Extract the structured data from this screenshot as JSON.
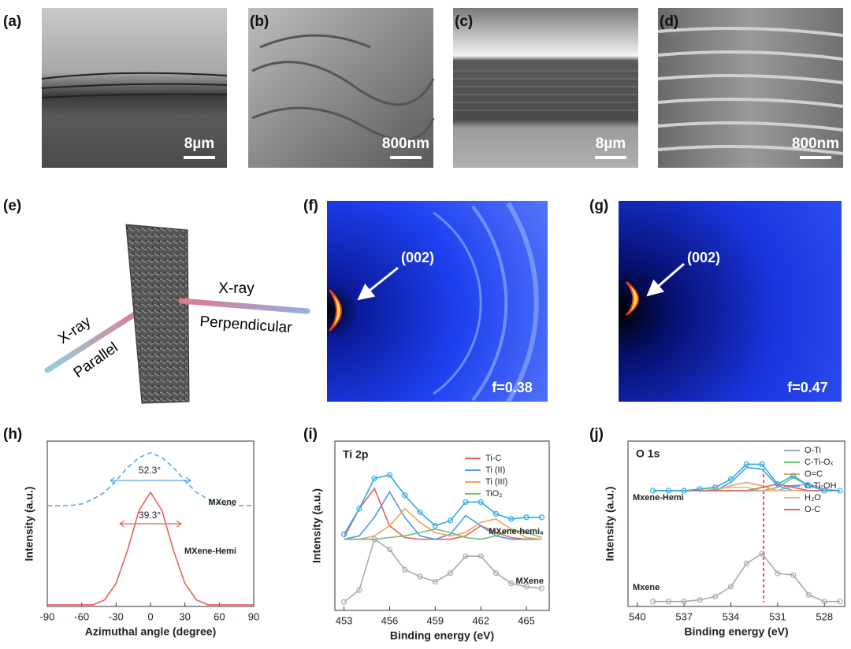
{
  "sem": [
    {
      "label": "(a)",
      "scale": "8µm"
    },
    {
      "label": "(b)",
      "scale": "800nm"
    },
    {
      "label": "(c)",
      "scale": "8µm"
    },
    {
      "label": "(d)",
      "scale": "800nm"
    }
  ],
  "schematic": {
    "label": "(e)",
    "xray_parallel": "X-ray",
    "parallel": "Parallel",
    "xray_perpendicular": "X-ray",
    "perpendicular": "Perpendicular"
  },
  "diffraction": [
    {
      "label": "(f)",
      "peak": "(002)",
      "factor": "f=0.38"
    },
    {
      "label": "(g)",
      "peak": "(002)",
      "factor": "f=0.47"
    }
  ],
  "chart_data": [
    {
      "type": "line",
      "label": "(h)",
      "xlabel": "Azimuthal angle (degree)",
      "ylabel": "Intensity (a.u.)",
      "xlim": [
        -90,
        90
      ],
      "xticks": [
        -90,
        -60,
        -30,
        0,
        30,
        60,
        90
      ],
      "ylim": [
        0,
        10
      ],
      "x": [
        -90,
        -80,
        -70,
        -60,
        -50,
        -40,
        -30,
        -20,
        -10,
        0,
        10,
        20,
        30,
        40,
        50,
        60,
        70,
        80,
        90
      ],
      "series": [
        {
          "name": "MXene",
          "color": "#5aa9e6",
          "dash": true,
          "values": [
            6.1,
            6.1,
            6.1,
            6.2,
            6.5,
            6.9,
            7.6,
            8.4,
            9.0,
            9.3,
            9.0,
            8.4,
            7.6,
            6.9,
            6.5,
            6.2,
            6.1,
            6.1,
            6.1
          ]
        },
        {
          "name": "MXene-Hemi",
          "color": "#e8605a",
          "values": [
            0.1,
            0.1,
            0.1,
            0.1,
            0.1,
            0.4,
            1.4,
            3.4,
            5.8,
            6.9,
            5.8,
            3.4,
            1.4,
            0.4,
            0.1,
            0.1,
            0.1,
            0.1,
            0.1
          ]
        }
      ],
      "annotations": [
        "52.3°",
        "39.3°"
      ]
    },
    {
      "type": "line",
      "label": "(i)",
      "xlabel": "Binding energy (eV)",
      "ylabel": "Intensity (a.u.)",
      "xlim": [
        452.4,
        466.5
      ],
      "xticks": [
        453,
        456,
        459,
        462,
        465
      ],
      "ylim": [
        0,
        10
      ],
      "x": [
        453,
        454,
        455,
        456,
        457,
        458,
        459,
        460,
        461,
        462,
        463,
        464,
        465,
        466
      ],
      "series": [
        {
          "name": "Ti-C",
          "color": "#e8605a",
          "values": [
            4.3,
            6.0,
            7.2,
            5.0,
            4.3,
            4.2,
            4.2,
            4.2,
            4.4,
            5.0,
            4.6,
            4.3,
            4.2,
            4.2
          ]
        },
        {
          "name": "Ti (II)",
          "color": "#4d9de0",
          "values": [
            4.2,
            4.4,
            5.5,
            7.0,
            5.5,
            4.4,
            4.2,
            4.5,
            5.6,
            5.0,
            4.4,
            4.2,
            4.2,
            4.2
          ]
        },
        {
          "name": "Ti (III)",
          "color": "#f0a35e",
          "values": [
            4.2,
            4.2,
            4.4,
            5.0,
            6.0,
            5.2,
            4.6,
            4.4,
            4.6,
            5.2,
            5.4,
            4.8,
            4.3,
            4.2
          ]
        },
        {
          "name": "TiO₂",
          "color": "#6fbf73",
          "values": [
            4.2,
            4.2,
            4.2,
            4.3,
            4.4,
            4.6,
            4.8,
            4.6,
            4.3,
            4.2,
            4.4,
            4.8,
            4.6,
            4.3
          ]
        },
        {
          "name": "MXene-hemi₆",
          "color": "#29aee0",
          "marker": "circle",
          "values": [
            4.5,
            6.0,
            7.8,
            8.0,
            6.8,
            5.8,
            5.0,
            5.3,
            6.4,
            6.4,
            5.7,
            5.4,
            5.5,
            5.5
          ]
        },
        {
          "name": "MXene",
          "color": "#aaaaaa",
          "marker": "circle",
          "values": [
            0.5,
            1.2,
            4.2,
            3.6,
            2.4,
            2.0,
            1.7,
            2.2,
            3.2,
            3.2,
            2.2,
            1.6,
            1.4,
            1.3
          ]
        }
      ],
      "annotations": [
        "Ti 2p"
      ]
    },
    {
      "type": "line",
      "label": "(j)",
      "xlabel": "Binding energy (eV)",
      "ylabel": "Intensity (a.u.)",
      "xlim": [
        540.6,
        526.7
      ],
      "xticks": [
        540,
        537,
        534,
        531,
        528
      ],
      "ylim": [
        0,
        10
      ],
      "x": [
        539,
        538,
        537,
        536,
        535,
        534,
        533,
        532,
        531,
        530,
        529,
        528,
        527
      ],
      "series": [
        {
          "name": "O-Ti",
          "color": "#a99bd6",
          "values": [
            7.0,
            7.0,
            7.0,
            7.0,
            7.0,
            7.0,
            7.0,
            7.0,
            7.0,
            7.3,
            7.4,
            7.1,
            7.0
          ]
        },
        {
          "name": "C-Ti-Oₓ",
          "color": "#6fbf73",
          "values": [
            7.0,
            7.0,
            7.0,
            7.0,
            7.0,
            7.0,
            7.0,
            7.0,
            7.2,
            7.8,
            7.3,
            7.0,
            7.0
          ]
        },
        {
          "name": "O=C",
          "color": "#f0a35e",
          "values": [
            7.0,
            7.0,
            7.0,
            7.0,
            7.0,
            7.3,
            7.5,
            7.3,
            7.0,
            7.0,
            7.0,
            7.0,
            7.0
          ]
        },
        {
          "name": "C-Ti-OH",
          "color": "#4d9de0",
          "values": [
            7.0,
            7.0,
            7.0,
            7.0,
            7.0,
            7.5,
            8.4,
            8.3,
            7.3,
            7.0,
            7.0,
            7.0,
            7.0
          ]
        },
        {
          "name": "H₂O",
          "color": "#d9b99b",
          "values": [
            7.0,
            7.0,
            7.0,
            7.0,
            7.1,
            7.2,
            7.2,
            7.0,
            7.0,
            7.0,
            7.0,
            7.0,
            7.0
          ]
        },
        {
          "name": "O-C",
          "color": "#e8605a",
          "values": [
            7.0,
            7.0,
            7.0,
            7.0,
            7.0,
            7.0,
            7.0,
            7.2,
            7.4,
            7.2,
            7.0,
            7.0,
            7.0
          ]
        },
        {
          "name": "Mxene-Hemi",
          "color": "#29aee0",
          "marker": "circle",
          "values": [
            7.0,
            7.0,
            7.0,
            7.1,
            7.2,
            7.7,
            8.6,
            8.6,
            7.4,
            7.9,
            7.3,
            7.0,
            7.0
          ]
        },
        {
          "name": "Mxene",
          "color": "#aaaaaa",
          "marker": "circle",
          "values": [
            0.3,
            0.3,
            0.3,
            0.4,
            0.6,
            1.2,
            2.6,
            3.2,
            2.0,
            1.9,
            0.7,
            0.3,
            0.3
          ]
        }
      ],
      "vline": 531.9,
      "annotations": [
        "O 1s"
      ]
    }
  ]
}
